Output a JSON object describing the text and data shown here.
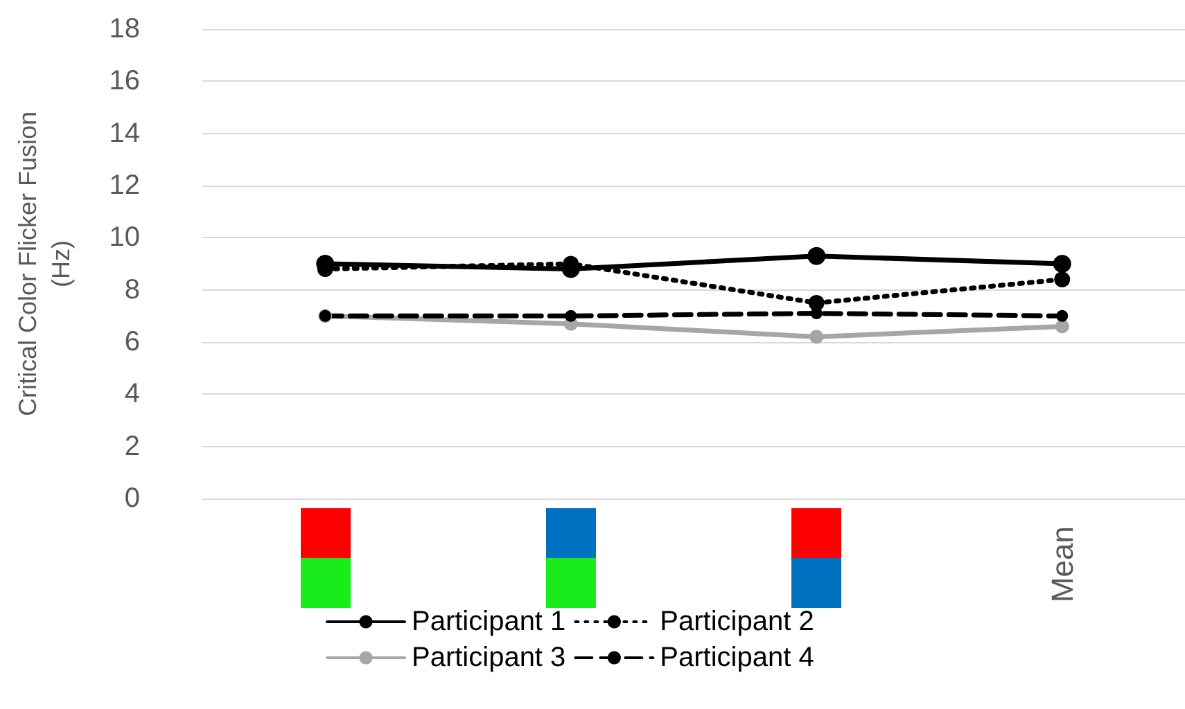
{
  "chart_data": {
    "type": "line",
    "ylabel": "Critical Color Flicker Fusion (Hz)",
    "categories": [
      null,
      null,
      null,
      "Mean"
    ],
    "series": [
      {
        "name": "Participant 1",
        "color": "#000000",
        "line_style": "solid",
        "values": [
          9.0,
          8.8,
          9.3,
          9.0
        ]
      },
      {
        "name": "Participant 2",
        "color": "#000000",
        "line_style": "dotted",
        "values": [
          8.8,
          9.0,
          7.5,
          8.4
        ]
      },
      {
        "name": "Participant 3",
        "color": "#a6a6a6",
        "line_style": "solid",
        "values": [
          7.0,
          6.7,
          6.2,
          6.6
        ]
      },
      {
        "name": "Participant 4",
        "color": "#000000",
        "line_style": "dashed",
        "values": [
          7.0,
          7.0,
          7.1,
          7.0
        ]
      }
    ],
    "ylim": [
      0,
      18
    ],
    "yticks": [
      0,
      2,
      4,
      6,
      8,
      10,
      12,
      14,
      16,
      18
    ],
    "grid": "y",
    "legend": "bottom",
    "marker": "circle"
  }
}
